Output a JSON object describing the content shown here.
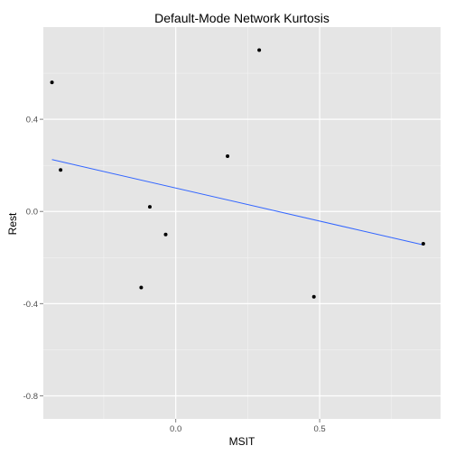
{
  "chart_data": {
    "type": "scatter",
    "title": "Default-Mode Network Kurtosis",
    "xlabel": "MSIT",
    "ylabel": "Rest",
    "xlim": [
      -0.46,
      0.92
    ],
    "ylim": [
      -0.9,
      0.8
    ],
    "x_ticks": [
      0.0,
      0.5
    ],
    "x_tick_labels": [
      "0.0",
      "0.5"
    ],
    "y_ticks": [
      -0.8,
      -0.4,
      0.0,
      0.4
    ],
    "y_tick_labels": [
      "-0.8",
      "-0.4",
      "0.0",
      "0.4"
    ],
    "grid": true,
    "legend": "none",
    "points": [
      {
        "x": -0.43,
        "y": 0.56
      },
      {
        "x": -0.4,
        "y": 0.18
      },
      {
        "x": -0.12,
        "y": -0.33
      },
      {
        "x": -0.09,
        "y": 0.02
      },
      {
        "x": -0.035,
        "y": -0.1
      },
      {
        "x": 0.18,
        "y": 0.24
      },
      {
        "x": 0.29,
        "y": 0.7
      },
      {
        "x": 0.48,
        "y": -0.37
      },
      {
        "x": 0.86,
        "y": -0.14
      }
    ],
    "fit_line": {
      "x": [
        -0.43,
        0.86
      ],
      "y": [
        0.225,
        -0.145
      ]
    },
    "colors": {
      "panel": "#e5e5e5",
      "grid_major": "#ffffff",
      "grid_minor": "#f2f2f2",
      "point": "#000000",
      "fit_line": "#3366ff",
      "tick_text": "#4d4d4d"
    }
  }
}
